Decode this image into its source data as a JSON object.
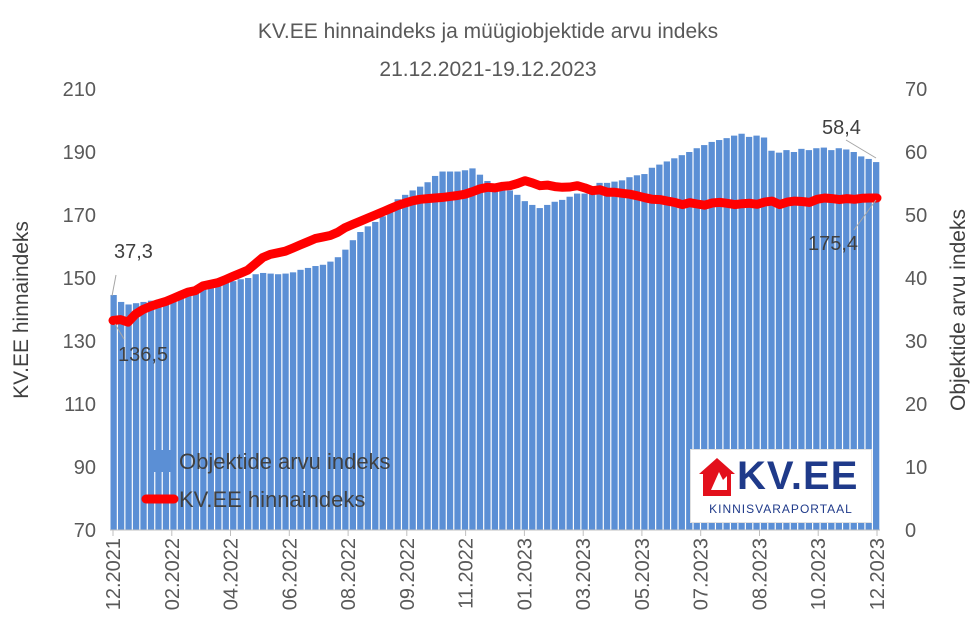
{
  "title_line1": "KV.EE hinnaindeks ja müügiobjektide arvu indeks",
  "title_line2": "21.12.2021-19.12.2023",
  "logo": {
    "main": "KV.EE",
    "sub": "KINNISVARAPORTAAL",
    "icon": "house-arrow-icon",
    "color": "#1f3a8a",
    "accent": "#e3101c"
  },
  "annotations": [
    "37,3",
    "136,5",
    "58,4",
    "175,4"
  ],
  "chart_data": {
    "type": "bar+line",
    "x_tick_labels": [
      "12.2021",
      "02.2022",
      "04.2022",
      "06.2022",
      "08.2022",
      "09.2022",
      "11.2022",
      "01.2023",
      "03.2023",
      "05.2023",
      "07.2023",
      "08.2023",
      "10.2023",
      "12.2023"
    ],
    "y_left": {
      "label": "KV.EE hinnaindeks",
      "min": 70,
      "max": 210,
      "ticks": [
        70,
        90,
        110,
        130,
        150,
        170,
        190,
        210
      ]
    },
    "y_right": {
      "label": "Objektide arvu indeks",
      "min": 0,
      "max": 70,
      "ticks": [
        0,
        10,
        20,
        30,
        40,
        50,
        60,
        70
      ]
    },
    "legend": [
      "Objektide arvu indeks",
      "KV.EE hinnaindeks"
    ],
    "legend_position": "bottom-left",
    "series": [
      {
        "name": "Objektide arvu indeks",
        "type": "bar",
        "axis": "right",
        "color": "#5b8fd5",
        "values": [
          37.3,
          36.2,
          35.8,
          36.0,
          36.2,
          36.4,
          36.5,
          36.3,
          36.6,
          37.0,
          37.5,
          38.0,
          38.5,
          39.2,
          39.6,
          39.6,
          39.5,
          39.8,
          40.0,
          40.6,
          40.8,
          40.7,
          40.6,
          40.7,
          40.9,
          41.3,
          41.6,
          41.9,
          42.1,
          42.6,
          43.3,
          44.5,
          46.0,
          47.3,
          48.2,
          48.9,
          49.8,
          51.3,
          52.5,
          53.2,
          53.9,
          54.5,
          55.2,
          56.2,
          56.9,
          56.9,
          56.9,
          57.1,
          57.4,
          56.4,
          55.4,
          54.4,
          53.9,
          53.9,
          53.2,
          52.2,
          51.6,
          51.1,
          51.6,
          52.1,
          52.4,
          52.9,
          53.4,
          53.4,
          54.4,
          55.1,
          55.1,
          55.3,
          55.5,
          56.0,
          56.3,
          56.5,
          57.5,
          58.0,
          58.5,
          59.0,
          59.5,
          60.0,
          60.6,
          61.1,
          61.6,
          61.9,
          62.2,
          62.6,
          62.9,
          62.4,
          62.6,
          62.3,
          60.2,
          59.9,
          60.3,
          60.0,
          60.5,
          60.3,
          60.6,
          60.7,
          60.3,
          60.6,
          60.4,
          60.0,
          59.3,
          58.9,
          58.4
        ]
      },
      {
        "name": "KV.EE hinnaindeks",
        "type": "line",
        "axis": "left",
        "color": "#ff0000",
        "values": [
          136.5,
          136.8,
          136.0,
          138.5,
          140.0,
          141.0,
          141.8,
          142.5,
          143.5,
          144.5,
          145.5,
          146.0,
          147.5,
          148.0,
          148.5,
          149.5,
          150.5,
          151.5,
          152.5,
          154.5,
          156.5,
          157.5,
          158.0,
          158.5,
          159.5,
          160.5,
          161.5,
          162.5,
          163.0,
          163.5,
          164.5,
          166.0,
          167.0,
          168.0,
          169.0,
          170.0,
          171.0,
          172.0,
          173.0,
          173.8,
          174.5,
          175.0,
          175.2,
          175.4,
          175.6,
          175.9,
          176.2,
          176.6,
          177.4,
          178.3,
          178.8,
          178.6,
          179.1,
          179.3,
          180.0,
          180.9,
          180.2,
          179.3,
          179.5,
          179.0,
          178.8,
          178.9,
          179.3,
          178.6,
          177.7,
          178.0,
          177.2,
          177.2,
          176.9,
          176.6,
          176.1,
          175.5,
          175.0,
          174.9,
          174.4,
          174.0,
          173.3,
          173.9,
          173.5,
          173.1,
          173.8,
          174.0,
          173.7,
          173.3,
          173.6,
          173.7,
          173.4,
          174.1,
          174.4,
          173.3,
          174.1,
          174.4,
          174.3,
          174.0,
          175.0,
          175.4,
          175.2,
          174.9,
          175.2,
          175.0,
          175.3,
          175.4,
          175.4
        ]
      }
    ]
  }
}
